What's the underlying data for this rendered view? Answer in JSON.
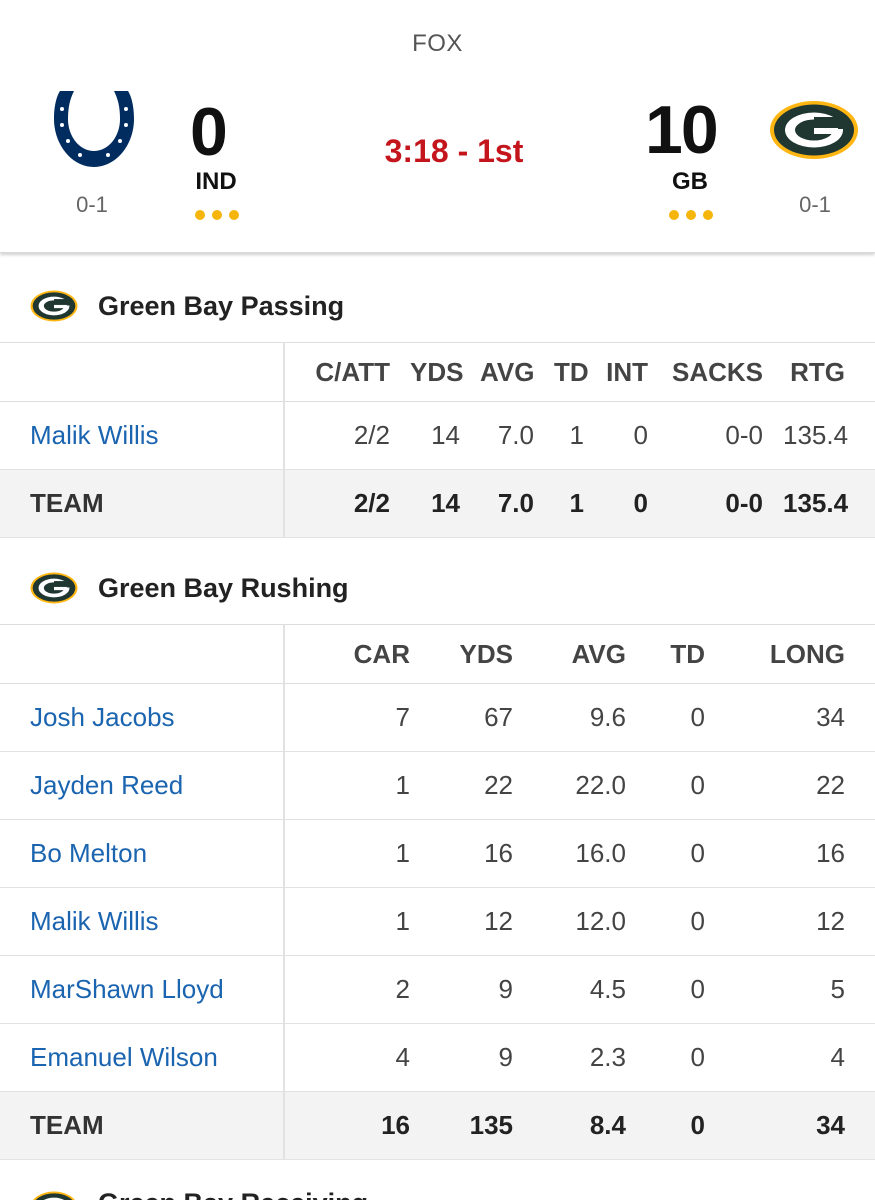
{
  "scoreboard": {
    "network": "FOX",
    "clock": "3:18 - 1st",
    "away": {
      "abbr": "IND",
      "score": "0",
      "record": "0-1",
      "logo_icon": "colts-horseshoe-icon",
      "color": "#002C5F"
    },
    "home": {
      "abbr": "GB",
      "score": "10",
      "record": "0-1",
      "logo_icon": "packers-g-icon",
      "color": "#203731"
    },
    "accent_color": "#f5b50a",
    "clock_color": "#c4151c"
  },
  "passing": {
    "title": "Green Bay Passing",
    "columns": [
      "C/ATT",
      "YDS",
      "AVG",
      "TD",
      "INT",
      "SACKS",
      "RTG"
    ],
    "rows": [
      {
        "name": "Malik Willis",
        "cells": [
          "2/2",
          "14",
          "7.0",
          "1",
          "0",
          "0-0",
          "135.4"
        ]
      }
    ],
    "team": {
      "name": "TEAM",
      "cells": [
        "2/2",
        "14",
        "7.0",
        "1",
        "0",
        "0-0",
        "135.4"
      ]
    }
  },
  "rushing": {
    "title": "Green Bay Rushing",
    "columns": [
      "CAR",
      "YDS",
      "AVG",
      "TD",
      "LONG"
    ],
    "rows": [
      {
        "name": "Josh Jacobs",
        "cells": [
          "7",
          "67",
          "9.6",
          "0",
          "34"
        ]
      },
      {
        "name": "Jayden Reed",
        "cells": [
          "1",
          "22",
          "22.0",
          "0",
          "22"
        ]
      },
      {
        "name": "Bo Melton",
        "cells": [
          "1",
          "16",
          "16.0",
          "0",
          "16"
        ]
      },
      {
        "name": "Malik Willis",
        "cells": [
          "1",
          "12",
          "12.0",
          "0",
          "12"
        ]
      },
      {
        "name": "MarShawn Lloyd",
        "cells": [
          "2",
          "9",
          "4.5",
          "0",
          "5"
        ]
      },
      {
        "name": "Emanuel Wilson",
        "cells": [
          "4",
          "9",
          "2.3",
          "0",
          "4"
        ]
      }
    ],
    "team": {
      "name": "TEAM",
      "cells": [
        "16",
        "135",
        "8.4",
        "0",
        "34"
      ]
    }
  },
  "next_section": {
    "title": "Green Bay Receiving"
  }
}
